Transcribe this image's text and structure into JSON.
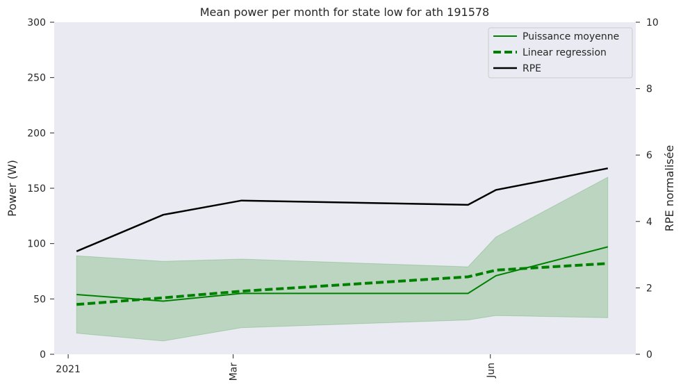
{
  "chart_data": {
    "type": "line",
    "title": "Mean power per month for state low for ath 191578",
    "ylabel": "Power (W)",
    "y2label": "RPE normalisée",
    "ylim": [
      0,
      300
    ],
    "y2lim": [
      0,
      10
    ],
    "yticks": [
      0,
      50,
      100,
      150,
      200,
      250,
      300
    ],
    "y2ticks": [
      0,
      2,
      4,
      6,
      8,
      10
    ],
    "xlim": [
      "2020-12-27",
      "2021-07-23"
    ],
    "xticks": [
      {
        "date": "2021-01-01",
        "label": "2021",
        "rotated": false
      },
      {
        "date": "2021-03-01",
        "label": "Mar",
        "rotated": true
      },
      {
        "date": "2021-06-01",
        "label": "Jun",
        "rotated": true
      }
    ],
    "x": [
      "2021-01-05",
      "2021-02-05",
      "2021-03-05",
      "2021-04-05",
      "2021-05-05",
      "2021-06-05",
      "2021-07-05"
    ],
    "series": [
      {
        "name": "Puissance moyenne",
        "axis": "left",
        "style": "solid",
        "color": "#008000",
        "values": [
          null,
          null,
          null,
          null,
          null,
          null,
          null
        ]
      },
      {
        "name": "Linear regression",
        "axis": "left",
        "style": "dashed",
        "color": "#008000",
        "values": [
          null,
          null,
          null,
          null,
          null,
          null,
          null
        ]
      },
      {
        "name": "RPE",
        "axis": "right",
        "style": "solid",
        "color": "#000000",
        "values": [
          null,
          null,
          null,
          null,
          null,
          null,
          null
        ]
      }
    ],
    "points": {
      "dates": [
        "2021-01-04",
        "2021-02-04",
        "2021-03-04",
        "2021-04-22",
        "2021-05-24",
        "2021-06-03",
        "2021-07-13"
      ],
      "mean_power": [
        54,
        48,
        55,
        null,
        55,
        71,
        97
      ],
      "band_lower": [
        19,
        12,
        24,
        null,
        31,
        35,
        33
      ],
      "band_upper": [
        89,
        84,
        86,
        null,
        79,
        106,
        160
      ],
      "regression": [
        45,
        51,
        57,
        null,
        70,
        76,
        82
      ],
      "rpe": [
        3.1,
        4.2,
        4.63,
        null,
        4.5,
        4.95,
        5.6
      ]
    },
    "grid": false,
    "legend": "top-right"
  }
}
